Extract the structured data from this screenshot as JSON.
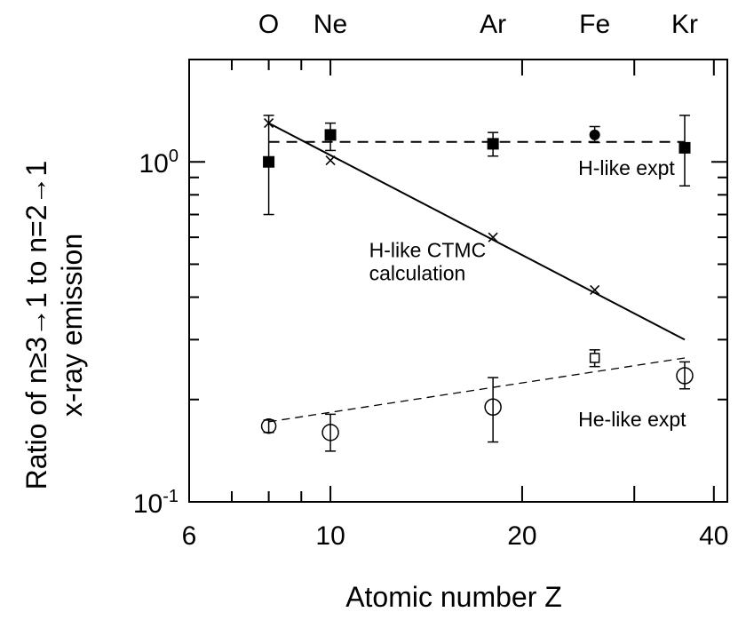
{
  "chart_data": {
    "type": "scatter",
    "xlabel": "Atomic number Z",
    "ylabel": [
      "Ratio of n≥3→1 to n=2→1",
      "x-ray emission"
    ],
    "xscale": "log",
    "yscale": "log",
    "xlim": [
      6,
      42
    ],
    "ylim": [
      0.1,
      2.0
    ],
    "x_ticks": [
      {
        "base": "6",
        "value": 6
      },
      {
        "base": "10",
        "value": 10
      },
      {
        "base": "20",
        "value": 20
      },
      {
        "base": "40",
        "value": 40
      }
    ],
    "y_ticks": [
      {
        "base": "10",
        "exp": "0",
        "value": 1.0
      },
      {
        "base": "10",
        "exp": "-1",
        "value": 0.1
      }
    ],
    "element_labels": [
      {
        "symbol": "O",
        "z": 8
      },
      {
        "symbol": "Ne",
        "z": 10
      },
      {
        "symbol": "Ar",
        "z": 18
      },
      {
        "symbol": "Fe",
        "z": 26
      },
      {
        "symbol": "Kr",
        "z": 36
      }
    ],
    "annotations": [
      {
        "text": "H-like expt",
        "x": 24.5,
        "y": 0.96
      },
      {
        "text": "H-like CTMC",
        "x": 11.5,
        "y": 0.55
      },
      {
        "text": "calculation",
        "x": 11.5,
        "y": 0.47
      },
      {
        "text": "He-like expt",
        "x": 24.5,
        "y": 0.175
      }
    ],
    "series": [
      {
        "name": "H-like expt",
        "marker": "filled-square",
        "points": [
          {
            "x": 8,
            "y": 1.0,
            "ylo": 0.7,
            "yhi": 1.37
          },
          {
            "x": 10,
            "y": 1.2,
            "ylo": 1.08,
            "yhi": 1.3
          },
          {
            "x": 18,
            "y": 1.13,
            "ylo": 1.04,
            "yhi": 1.22
          },
          {
            "x": 36,
            "y": 1.1,
            "ylo": 0.85,
            "yhi": 1.37
          }
        ]
      },
      {
        "name": "H-like expt",
        "marker": "filled-circle",
        "points": [
          {
            "x": 26,
            "y": 1.2,
            "ylo": 1.14,
            "yhi": 1.27
          }
        ]
      },
      {
        "name": "H-like CTMC calculation",
        "marker": "cross",
        "points": [
          {
            "x": 8,
            "y": 1.3
          },
          {
            "x": 10,
            "y": 1.01
          },
          {
            "x": 18,
            "y": 0.6
          },
          {
            "x": 26,
            "y": 0.42
          }
        ]
      },
      {
        "name": "He-like expt",
        "marker": "open-circle",
        "points": [
          {
            "x": 8,
            "y": 0.167,
            "ylo": 0.16,
            "yhi": 0.174
          },
          {
            "x": 10,
            "y": 0.16,
            "ylo": 0.141,
            "yhi": 0.181
          },
          {
            "x": 18,
            "y": 0.19,
            "ylo": 0.15,
            "yhi": 0.232
          },
          {
            "x": 36,
            "y": 0.235,
            "ylo": 0.215,
            "yhi": 0.258
          }
        ]
      },
      {
        "name": "He-like expt",
        "marker": "open-square",
        "points": [
          {
            "x": 26,
            "y": 0.265,
            "ylo": 0.25,
            "yhi": 0.28
          }
        ]
      }
    ],
    "lines": [
      {
        "style": "dashed-long",
        "x1": 8,
        "y1": 1.145,
        "x2": 36,
        "y2": 1.145
      },
      {
        "style": "solid",
        "x1": 8,
        "y1": 1.3,
        "x2": 36,
        "y2": 0.3
      },
      {
        "style": "dashed-short",
        "x1": 8,
        "y1": 0.172,
        "x2": 36,
        "y2": 0.265
      }
    ],
    "grid": false,
    "legend": "none"
  }
}
